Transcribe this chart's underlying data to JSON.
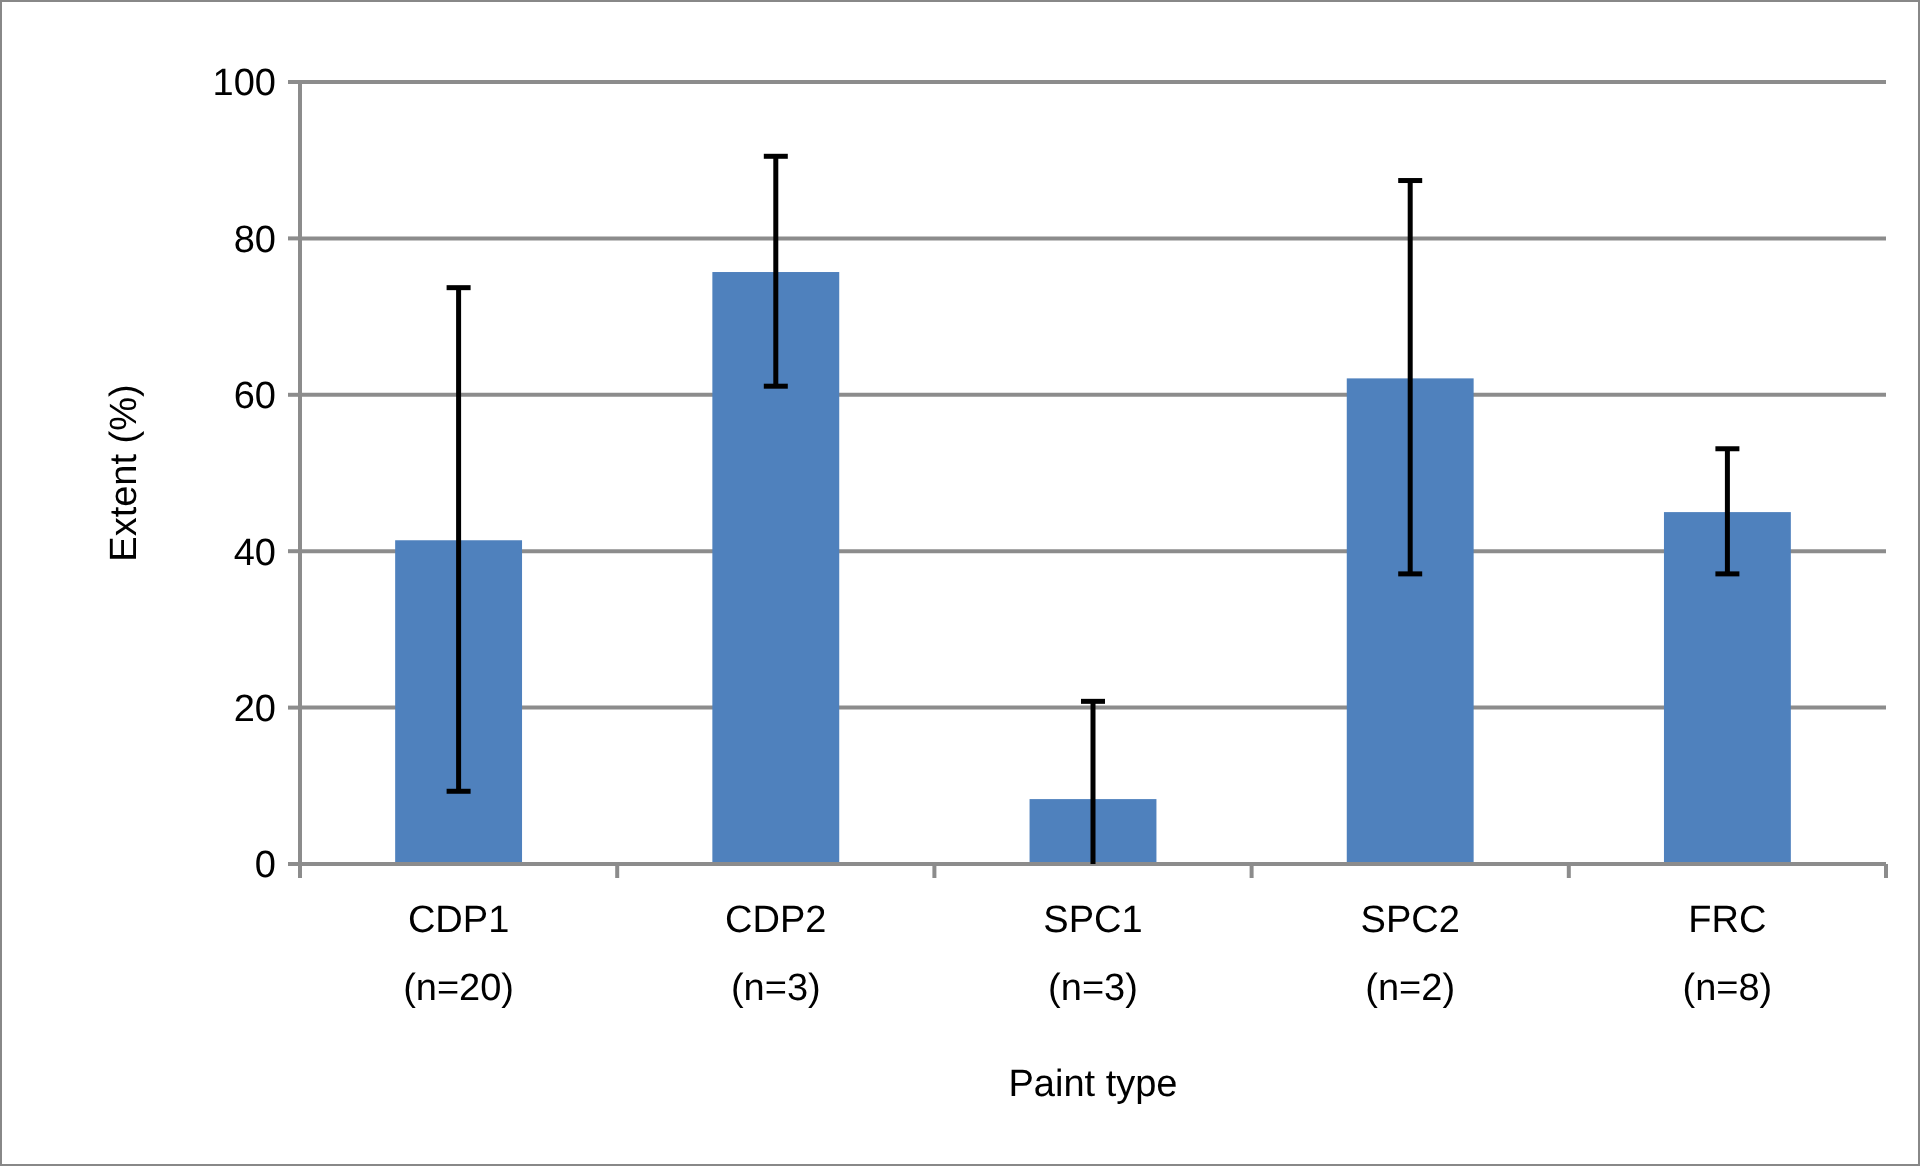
{
  "chart_data": {
    "type": "bar",
    "xlabel": "Paint type",
    "ylabel": "Extent (%)",
    "categories": [
      "CDP1\n(n=20)",
      "CDP2\n(n=3)",
      "SPC1\n(n=3)",
      "SPC2\n(n=2)",
      "FRC\n(n=8)"
    ],
    "values": [
      41.4,
      75.7,
      8.3,
      62.1,
      45.0
    ],
    "errors": [
      [
        9.3,
        73.7
      ],
      [
        61.1,
        90.5
      ],
      [
        0,
        20.8
      ],
      [
        37.1,
        87.4
      ],
      [
        37.1,
        53.1
      ]
    ],
    "color": "#4f81bd",
    "ylim": [
      0,
      100
    ],
    "yticks": [
      0,
      20,
      40,
      60,
      80,
      100
    ],
    "grid": "y"
  }
}
